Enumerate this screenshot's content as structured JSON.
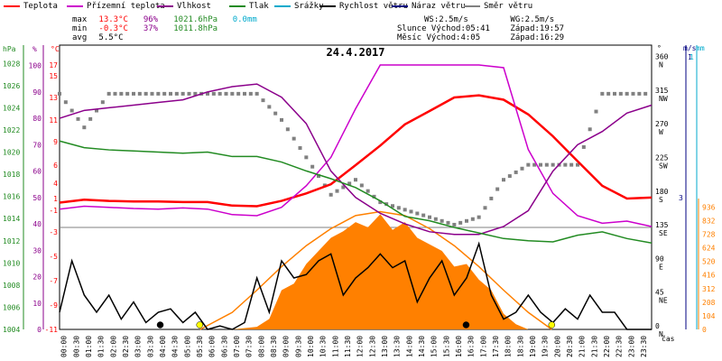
{
  "legend": [
    {
      "label": "Teplota",
      "color": "#ff0000"
    },
    {
      "label": "Přízemní teplota",
      "color": "#cc00cc"
    },
    {
      "label": "Vlhkost",
      "color": "#8b008b"
    },
    {
      "label": "Tlak",
      "color": "#228b22"
    },
    {
      "label": "Srážky",
      "color": "#00aacc"
    },
    {
      "label": "Rychlost větru",
      "color": "#000000"
    },
    {
      "label": "Náraz větru",
      "color": "#000080"
    },
    {
      "label": "Směr větru",
      "color": "#808080"
    }
  ],
  "stats": {
    "max": {
      "label": "max",
      "temp": "13.3°C",
      "hum": "96%",
      "press": "1021.6hPa",
      "rain": "0.0mm"
    },
    "min": {
      "label": "min",
      "temp": "-0.3°C",
      "hum": "37%",
      "press": "1011.8hPa"
    },
    "avg": {
      "label": "avg",
      "temp": "5.5°C"
    }
  },
  "astro": {
    "ws": "WS:2.5m/s",
    "wg": "WG:2.5m/s",
    "sun": "Slunce Východ:05:41",
    "sun_set": "Západ:19:57",
    "moon": "Měsíc  Východ:4:05",
    "moon_set": "Západ:16:29"
  },
  "chart_data": {
    "type": "line",
    "title": "24.4.2017",
    "xlabel": "čas",
    "x_ticks": [
      "00:00",
      "00:30",
      "01:00",
      "01:30",
      "02:00",
      "02:30",
      "03:00",
      "03:30",
      "04:00",
      "04:30",
      "05:00",
      "05:30",
      "06:00",
      "06:30",
      "07:00",
      "07:30",
      "08:00",
      "08:30",
      "09:00",
      "09:30",
      "10:00",
      "10:30",
      "11:00",
      "11:30",
      "12:00",
      "12:30",
      "13:00",
      "13:30",
      "14:00",
      "14:30",
      "15:00",
      "15:30",
      "16:00",
      "16:30",
      "17:00",
      "17:30",
      "18:00",
      "18:30",
      "19:00",
      "19:30",
      "20:00",
      "20:30",
      "21:00",
      "21:30",
      "22:00",
      "22:30",
      "23:00",
      "23:30"
    ],
    "axes": {
      "pressure": {
        "unit": "hPa",
        "range": [
          1004,
          1029
        ],
        "ticks": [
          1004,
          1006,
          1008,
          1010,
          1012,
          1014,
          1016,
          1018,
          1020,
          1022,
          1024,
          1026,
          1028
        ]
      },
      "humidity": {
        "unit": "%",
        "range": [
          0,
          105
        ],
        "ticks": [
          0,
          10,
          20,
          30,
          40,
          50,
          60,
          70,
          80,
          90,
          100
        ]
      },
      "temperature": {
        "unit": "°C",
        "range": [
          -11,
          19
        ],
        "ticks": [
          -11,
          -9,
          -7,
          -5,
          -3,
          -1,
          1,
          4,
          6,
          9,
          11,
          13,
          15,
          17
        ]
      },
      "wind_direction": {
        "unit": "°",
        "range": [
          0,
          380
        ],
        "ticks": [
          "0 N",
          "45 NE",
          "90 E",
          "135 SE",
          "180 S",
          "225 SW",
          "270 W",
          "315 NW",
          "360 N"
        ]
      },
      "wind_speed": {
        "unit": "m/s",
        "ticks": [
          "1",
          "3"
        ]
      },
      "rain": {
        "unit": "mm",
        "ticks": [
          "1"
        ]
      },
      "solar": {
        "unit": "W/m²",
        "range": [
          0,
          1000
        ],
        "ticks": [
          0,
          104,
          208,
          312,
          416,
          520,
          624,
          728,
          832,
          936
        ]
      }
    },
    "series": [
      {
        "name": "Teplota",
        "axis": "temperature",
        "color": "#ff0000",
        "x": [
          0,
          1,
          2,
          3,
          4,
          5,
          6,
          7,
          8,
          9,
          10,
          11,
          12,
          13,
          14,
          15,
          16,
          17,
          18,
          19,
          20,
          21,
          22,
          23,
          24
        ],
        "values": [
          0.3,
          0.8,
          0.6,
          0.5,
          0.5,
          0.4,
          0.4,
          -0.2,
          -0.3,
          0.6,
          2.0,
          3.8,
          6.0,
          8.5,
          10.6,
          11.8,
          13.0,
          13.2,
          12.8,
          11.5,
          9.5,
          6.5,
          3.5,
          1.0,
          1.2
        ]
      },
      {
        "name": "Přízemní teplota",
        "axis": "temperature",
        "color": "#cc00cc",
        "x": [
          0,
          1,
          2,
          3,
          4,
          5,
          6,
          7,
          8,
          9,
          10,
          11,
          12,
          13,
          14,
          15,
          16,
          17,
          18,
          19,
          20,
          21,
          22,
          23,
          24
        ],
        "values": [
          -0.8,
          -0.3,
          -0.5,
          -0.7,
          -0.8,
          -0.6,
          -0.8,
          -1.4,
          -1.5,
          -0.5,
          3.5,
          7.0,
          12.0,
          17.0,
          18.0,
          18.0,
          18.0,
          17.0,
          16.5,
          8.0,
          2.0,
          -1.5,
          -2.2,
          -2.0,
          -2.5
        ]
      },
      {
        "name": "Vlhkost",
        "axis": "humidity",
        "color": "#8b008b",
        "x": [
          0,
          1,
          2,
          3,
          4,
          5,
          6,
          7,
          8,
          9,
          10,
          11,
          12,
          13,
          14,
          15,
          16,
          17,
          18,
          19,
          20,
          21,
          22,
          23,
          24
        ],
        "values": [
          80,
          83,
          84,
          85,
          86,
          87,
          90,
          92,
          93,
          88,
          78,
          60,
          50,
          44,
          40,
          37,
          36,
          36,
          39,
          45,
          60,
          70,
          75,
          82,
          85
        ]
      },
      {
        "name": "Tlak",
        "axis": "pressure",
        "color": "#228b22",
        "x": [
          0,
          1,
          2,
          3,
          4,
          5,
          6,
          7,
          8,
          9,
          10,
          11,
          12,
          13,
          14,
          15,
          16,
          17,
          18,
          19,
          20,
          21,
          22,
          23,
          24
        ],
        "values": [
          1021.0,
          1020.4,
          1020.2,
          1020.1,
          1020.0,
          1019.9,
          1020.0,
          1019.6,
          1019.6,
          1019.1,
          1018.3,
          1017.6,
          1016.8,
          1015.6,
          1014.2,
          1013.8,
          1013.2,
          1012.7,
          1012.2,
          1012.0,
          1011.9,
          1012.5,
          1012.8,
          1012.2,
          1011.8
        ]
      },
      {
        "name": "Rychlost větru",
        "axis": "wind_speed",
        "color": "#000000",
        "x": [
          0,
          0.5,
          1,
          1.5,
          2,
          2.5,
          3,
          3.5,
          4,
          4.5,
          5,
          5.5,
          6,
          6.5,
          7,
          7.5,
          8,
          8.5,
          9,
          9.5,
          10,
          10.5,
          11,
          11.5,
          12,
          12.5,
          13,
          13.5,
          14,
          14.5,
          15,
          15.5,
          16,
          16.5,
          17,
          17.5,
          18,
          18.5,
          19,
          19.5,
          20,
          20.5,
          21,
          21.5,
          22,
          22.5,
          23,
          23.5,
          24
        ],
        "values": [
          0.5,
          2.0,
          1.0,
          0.5,
          1.0,
          0.3,
          0.8,
          0.2,
          0.5,
          0.6,
          0.2,
          0.5,
          0.0,
          0.1,
          0.0,
          0.2,
          1.5,
          0.5,
          2.0,
          1.5,
          1.6,
          2.0,
          2.2,
          1.0,
          1.5,
          1.8,
          2.2,
          1.8,
          2.0,
          0.8,
          1.5,
          2.0,
          1.0,
          1.5,
          2.5,
          1.0,
          0.3,
          0.5,
          1.0,
          0.5,
          0.2,
          0.6,
          0.3,
          1.0,
          0.5,
          0.5,
          0.0,
          0.0,
          0.0
        ]
      },
      {
        "name": "Sluneční záření",
        "axis": "solar",
        "color": "#ff8000",
        "style": "area",
        "x": [
          6,
          7,
          8,
          8.5,
          9,
          9.5,
          10,
          10.5,
          11,
          11.5,
          12,
          12.5,
          13,
          13.5,
          14,
          14.5,
          15,
          15.5,
          16,
          16.5,
          17,
          17.5,
          18,
          18.5,
          19
        ],
        "values": [
          0,
          0,
          20,
          80,
          300,
          350,
          500,
          600,
          700,
          750,
          820,
          780,
          880,
          760,
          820,
          700,
          650,
          600,
          480,
          500,
          380,
          300,
          120,
          40,
          0
        ]
      },
      {
        "name": "Teoretické záření",
        "axis": "solar",
        "color": "#ff8000",
        "style": "line",
        "x": [
          5.7,
          7,
          8,
          9,
          10,
          11,
          12,
          13,
          14,
          15,
          16,
          17,
          18,
          19,
          19.95
        ],
        "values": [
          0,
          130,
          300,
          480,
          640,
          770,
          870,
          900,
          870,
          770,
          640,
          480,
          300,
          130,
          0
        ]
      }
    ],
    "wind_direction": {
      "axis": "wind_direction",
      "x": [
        0,
        1,
        2,
        3,
        4,
        5,
        6,
        7,
        8,
        9,
        10,
        11,
        12,
        13,
        14,
        15,
        16,
        17,
        18,
        19,
        20,
        21,
        22,
        23,
        24
      ],
      "values": [
        315,
        270,
        315,
        315,
        315,
        315,
        315,
        315,
        315,
        280,
        230,
        180,
        200,
        170,
        160,
        150,
        140,
        150,
        200,
        220,
        220,
        220,
        315,
        315,
        315
      ]
    },
    "markers": [
      {
        "name": "východ Měsíce",
        "x": 4.08,
        "color": "#000000"
      },
      {
        "name": "východ Slunce",
        "x": 5.68,
        "color": "#ffff00"
      },
      {
        "name": "západ Měsíce",
        "x": 16.48,
        "color": "#000000"
      },
      {
        "name": "západ Slunce",
        "x": 19.95,
        "color": "#ffff00"
      }
    ]
  }
}
